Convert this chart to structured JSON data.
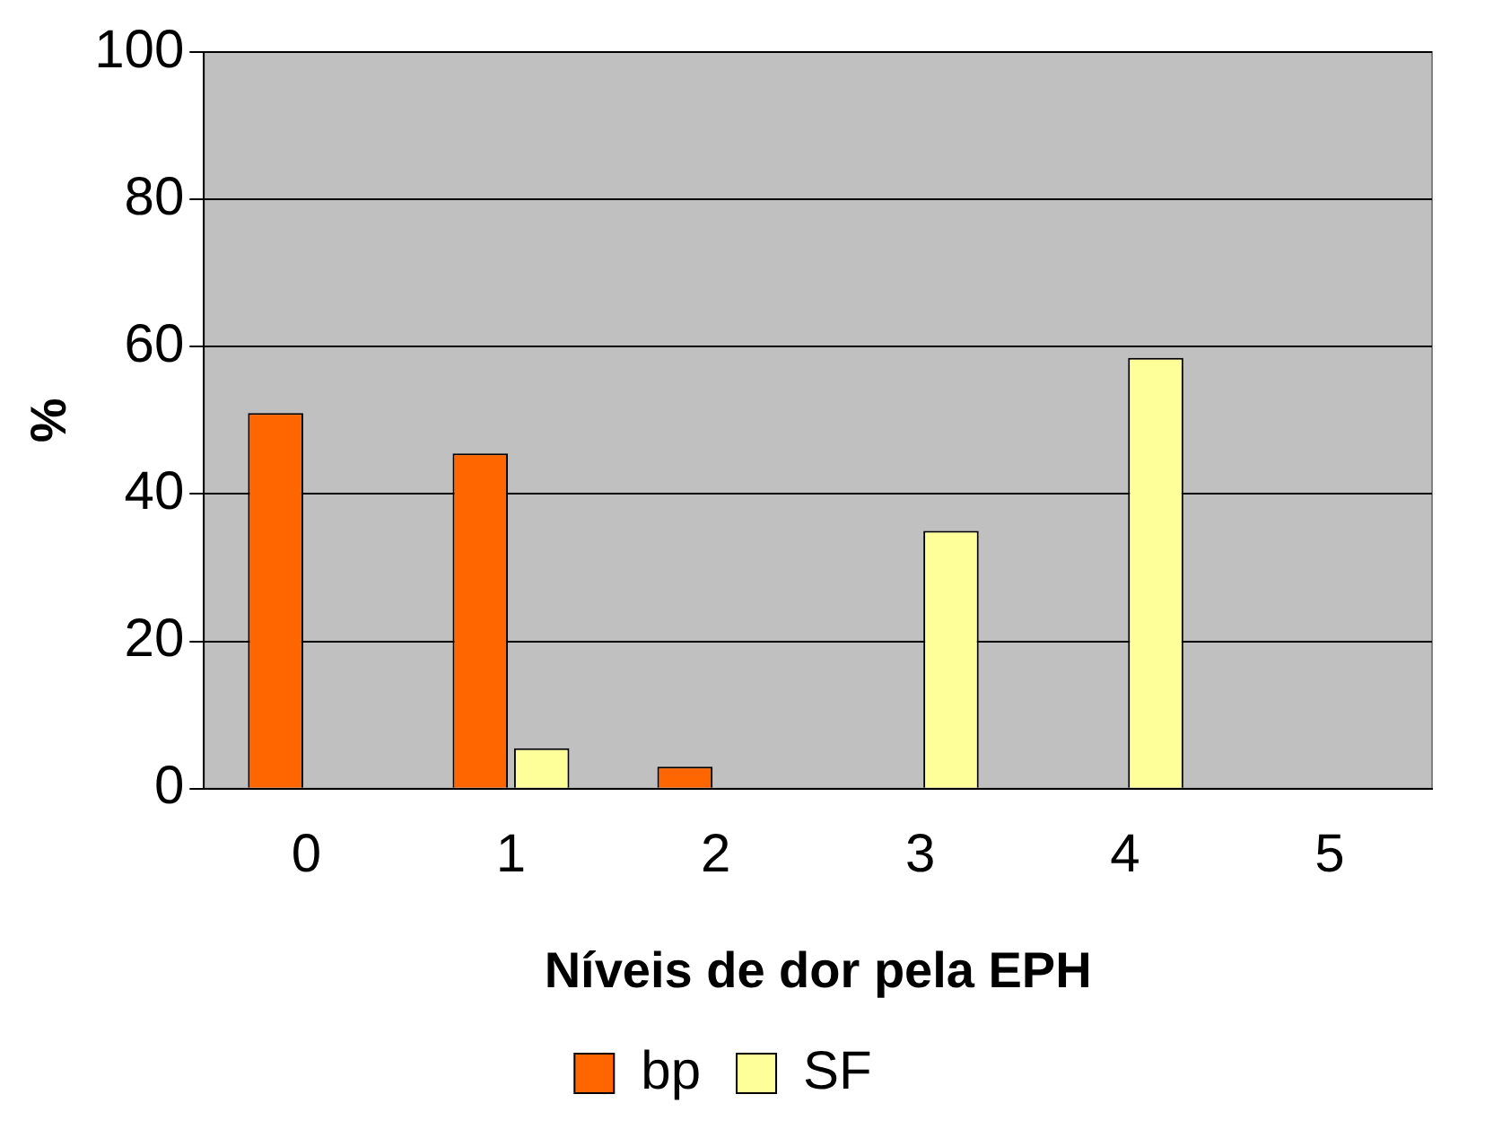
{
  "chart_data": {
    "type": "bar",
    "xlabel": "Níveis de dor pela EPH",
    "ylabel": "%",
    "categories": [
      "0",
      "1",
      "2",
      "3",
      "4",
      "5"
    ],
    "series": [
      {
        "name": "bp",
        "color": "#ff6600",
        "values": [
          51,
          45.5,
          3,
          0,
          0,
          0
        ]
      },
      {
        "name": "SF",
        "color": "#ffff99",
        "values": [
          0,
          5.5,
          0,
          35,
          58.5,
          0
        ]
      }
    ],
    "ylim": [
      0,
      100
    ],
    "yticks": [
      0,
      20,
      40,
      60,
      80,
      100
    ],
    "grid": "y",
    "legend": "bottom"
  }
}
